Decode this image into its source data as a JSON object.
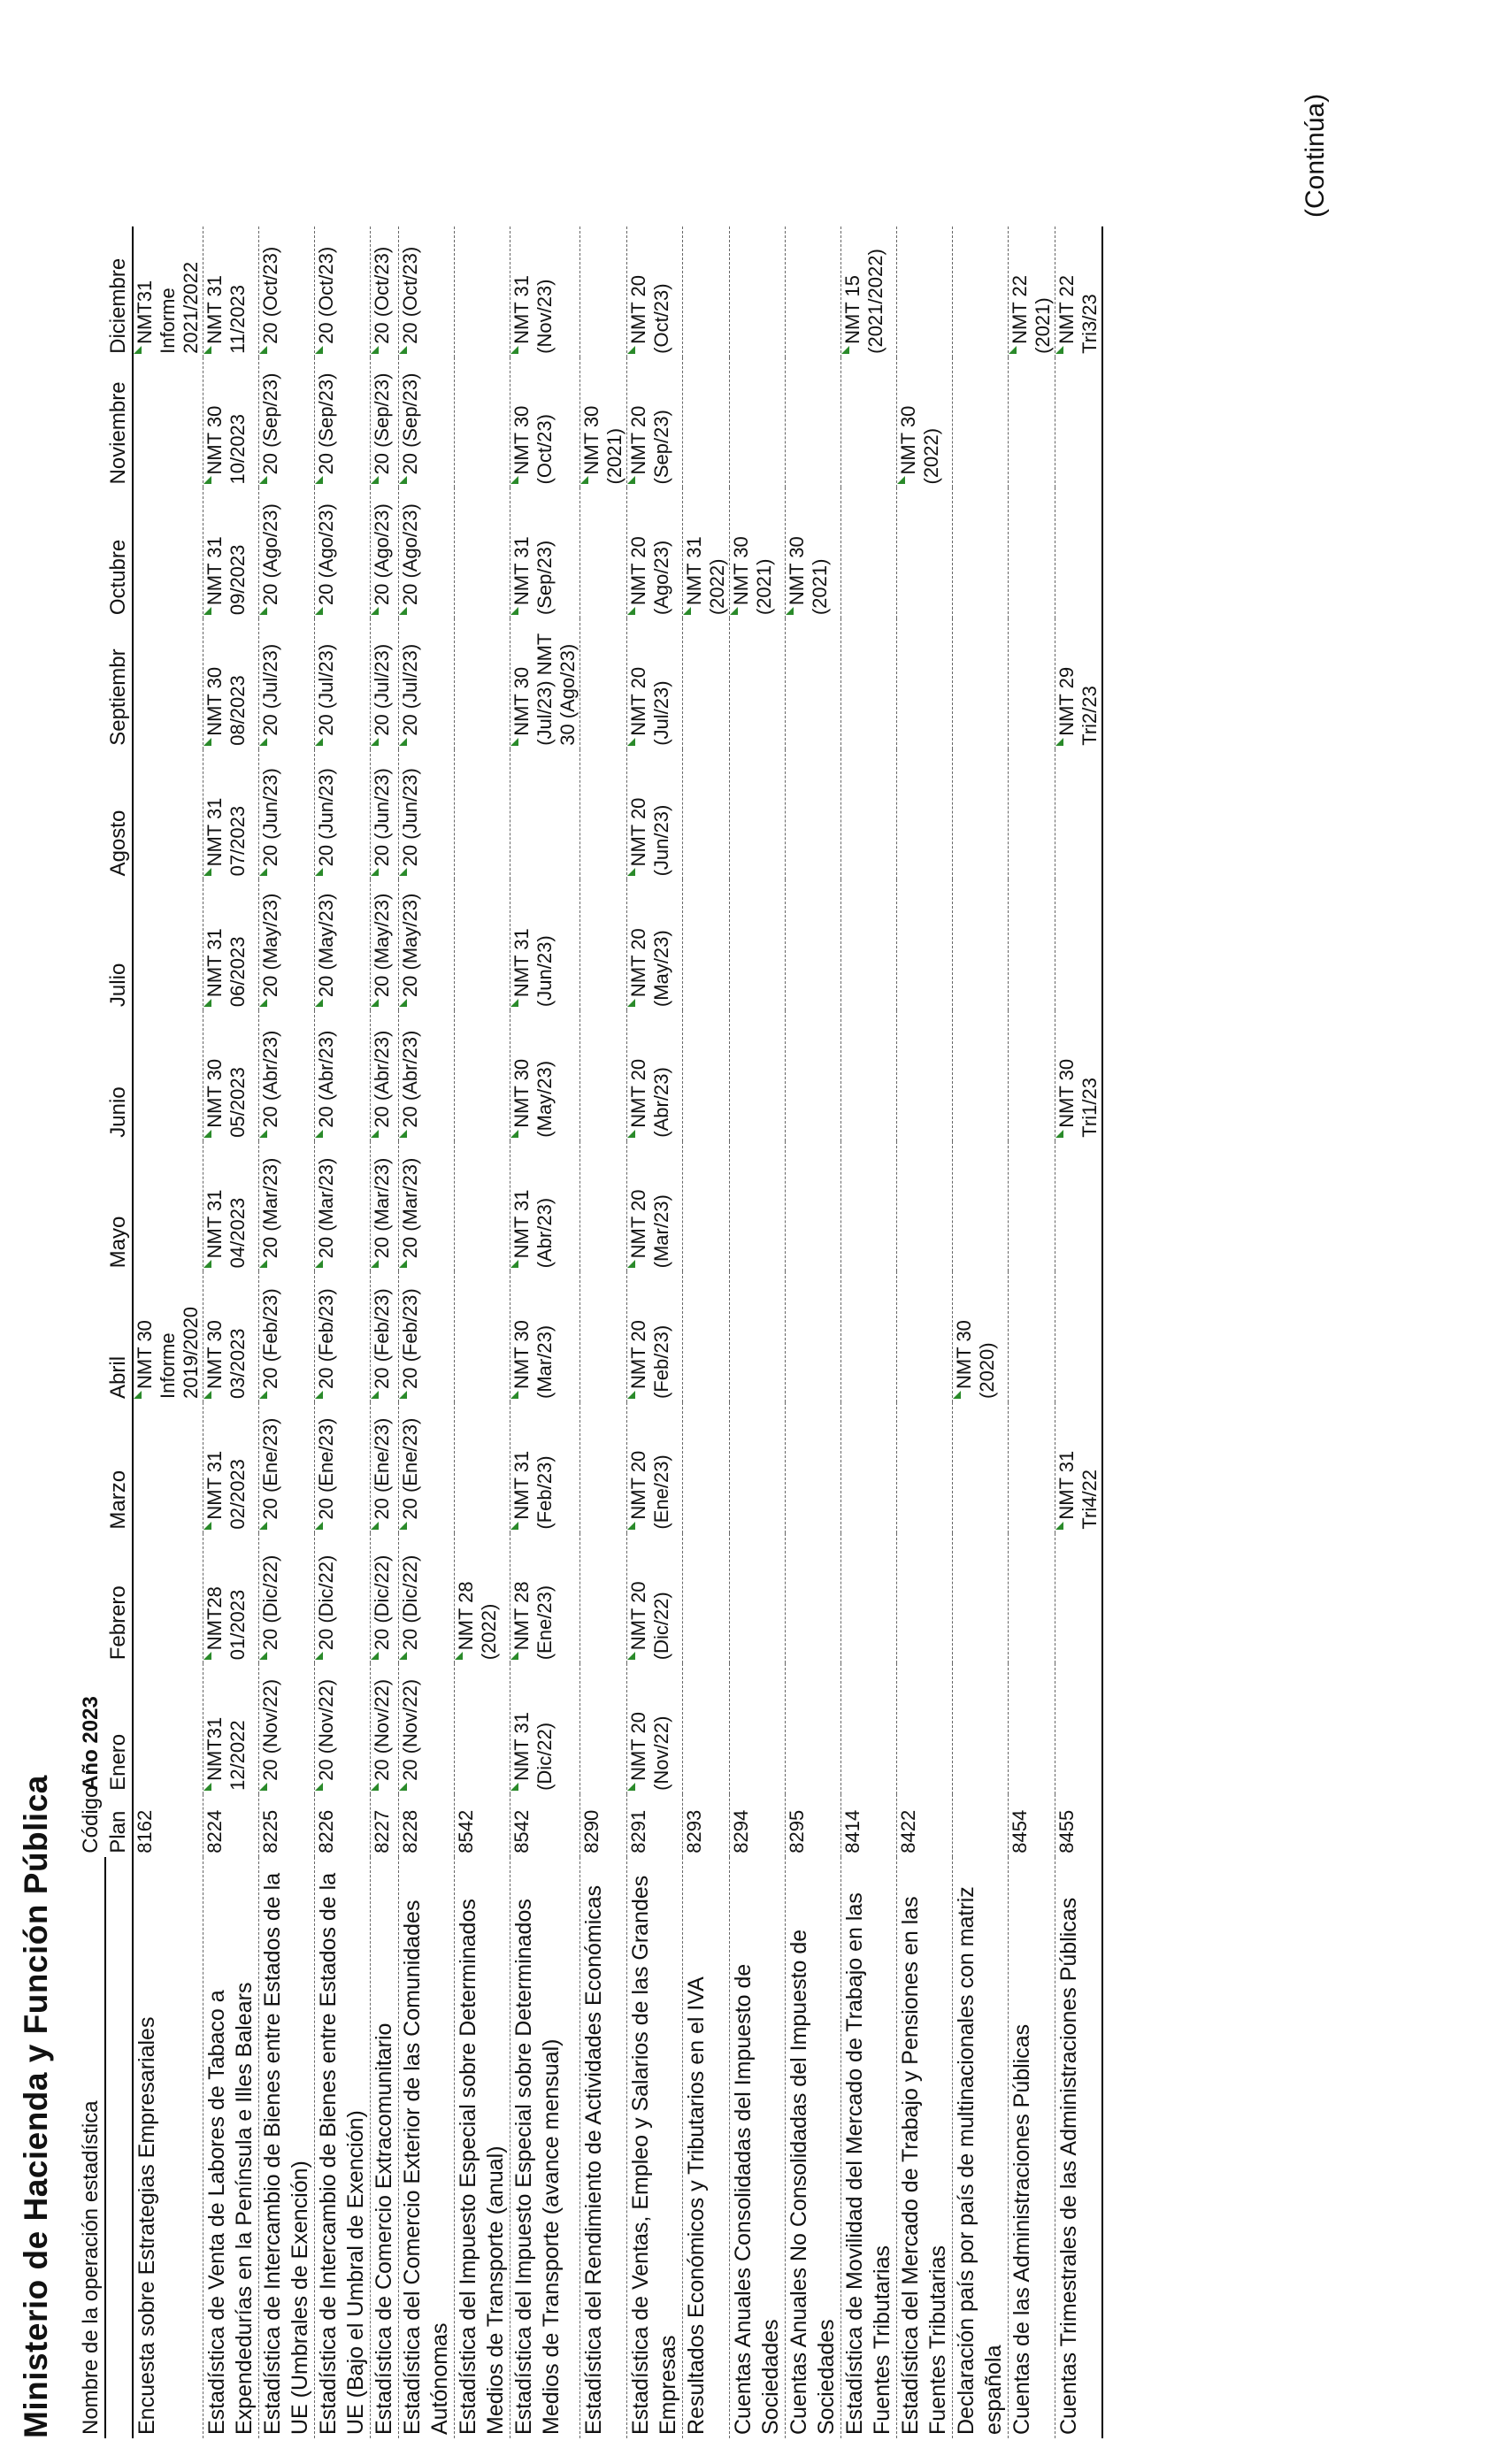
{
  "title": "Ministerio de Hacienda  y Función Pública",
  "continua": "(Continúa)",
  "header": {
    "name": "Nombre de la operación estadística",
    "codigo": "Código",
    "plan": "Plan",
    "year": "Año 2023",
    "months": [
      "Enero",
      "Febrero",
      "Marzo",
      "Abril",
      "Mayo",
      "Junio",
      "Julio",
      "Agosto",
      "Septiembr",
      "Octubre",
      "Noviembre",
      "Diciembre"
    ]
  },
  "rows": [
    {
      "name": "Encuesta sobre Estrategias Empresariales",
      "code": "8162",
      "cells": [
        "",
        "",
        "",
        "NMT 30 Informe 2019/2020",
        "",
        "",
        "",
        "",
        "",
        "",
        "",
        "NMT31 Informe 2021/2022"
      ]
    },
    {
      "name": "Estadística de Venta de Labores de Tabaco a Expendedurías en la Península e Illes Balears",
      "code": "8224",
      "cells": [
        "NMT31 12/2022",
        "NMT28 01/2023",
        "NMT 31 02/2023",
        "NMT 30 03/2023",
        "NMT 31 04/2023",
        "NMT 30 05/2023",
        "NMT 31 06/2023",
        "NMT 31 07/2023",
        "NMT 30 08/2023",
        "NMT 31 09/2023",
        "NMT 30 10/2023",
        "NMT 31 11/2023"
      ]
    },
    {
      "name": "Estadística de Intercambio de Bienes entre Estados de la UE (Umbrales de Exención)",
      "code": "8225",
      "cells": [
        "20 (Nov/22)",
        "20 (Dic/22)",
        "20 (Ene/23)",
        "20 (Feb/23)",
        "20 (Mar/23)",
        "20 (Abr/23)",
        "20 (May/23)",
        "20 (Jun/23)",
        "20 (Jul/23)",
        "20 (Ago/23)",
        "20 (Sep/23)",
        "20 (Oct/23)"
      ]
    },
    {
      "name": "Estadística de Intercambio de Bienes entre Estados de la UE (Bajo el Umbral de Exención)",
      "code": "8226",
      "cells": [
        "20 (Nov/22)",
        "20 (Dic/22)",
        "20 (Ene/23)",
        "20 (Feb/23)",
        "20 (Mar/23)",
        "20 (Abr/23)",
        "20 (May/23)",
        "20 (Jun/23)",
        "20 (Jul/23)",
        "20 (Ago/23)",
        "20 (Sep/23)",
        "20 (Oct/23)"
      ]
    },
    {
      "name": "Estadística de Comercio Extracomunitario",
      "code": "8227",
      "cells": [
        "20 (Nov/22)",
        "20 (Dic/22)",
        "20 (Ene/23)",
        "20 (Feb/23)",
        "20 (Mar/23)",
        "20 (Abr/23)",
        "20 (May/23)",
        "20 (Jun/23)",
        "20 (Jul/23)",
        "20 (Ago/23)",
        "20 (Sep/23)",
        "20 (Oct/23)"
      ]
    },
    {
      "name": "Estadística del Comercio Exterior de las Comunidades Autónomas",
      "code": "8228",
      "cells": [
        "20 (Nov/22)",
        "20 (Dic/22)",
        "20 (Ene/23)",
        "20 (Feb/23)",
        "20 (Mar/23)",
        "20 (Abr/23)",
        "20 (May/23)",
        "20 (Jun/23)",
        "20 (Jul/23)",
        "20 (Ago/23)",
        "20 (Sep/23)",
        "20 (Oct/23)"
      ]
    },
    {
      "name": "Estadística del Impuesto Especial sobre Determinados Medios de Transporte (anual)",
      "code": "8542",
      "cells": [
        "",
        "NMT 28 (2022)",
        "",
        "",
        "",
        "",
        "",
        "",
        "",
        "",
        "",
        ""
      ]
    },
    {
      "name": "Estadística del Impuesto Especial sobre Determinados Medios de Transporte (avance mensual)",
      "code": "8542",
      "cells": [
        "NMT 31 (Dic/22)",
        "NMT 28 (Ene/23)",
        "NMT 31 (Feb/23)",
        "NMT 30 (Mar/23)",
        "NMT 31 (Abr/23)",
        "NMT 30 (May/23)",
        "NMT 31 (Jun/23)",
        "",
        "NMT 30 (Jul/23) NMT 30 (Ago/23)",
        "NMT 31 (Sep/23)",
        "NMT 30 (Oct/23)",
        "NMT 31 (Nov/23)"
      ]
    },
    {
      "name": "Estadística del Rendimiento de Actividades Económicas",
      "code": "8290",
      "cells": [
        "",
        "",
        "",
        "",
        "",
        "",
        "",
        "",
        "",
        "",
        "NMT 30 (2021)",
        ""
      ]
    },
    {
      "name": "Estadística de Ventas, Empleo y Salarios de las Grandes Empresas",
      "code": "8291",
      "cells": [
        "NMT 20 (Nov/22)",
        "NMT 20 (Dic/22)",
        "NMT 20 (Ene/23)",
        "NMT 20 (Feb/23)",
        "NMT 20 (Mar/23)",
        "NMT 20 (Abr/23)",
        "NMT 20 (May/23)",
        "NMT 20 (Jun/23)",
        "NMT 20 (Jul/23)",
        "NMT 20 (Ago/23)",
        "NMT 20 (Sep/23)",
        "NMT 20 (Oct/23)"
      ]
    },
    {
      "name": "Resultados Económicos y Tributarios en el IVA",
      "code": "8293",
      "cells": [
        "",
        "",
        "",
        "",
        "",
        "",
        "",
        "",
        "",
        "NMT 31 (2022)",
        "",
        ""
      ]
    },
    {
      "name": "Cuentas Anuales Consolidadas del Impuesto de Sociedades",
      "code": "8294",
      "cells": [
        "",
        "",
        "",
        "",
        "",
        "",
        "",
        "",
        "",
        "NMT 30 (2021)",
        "",
        ""
      ]
    },
    {
      "name": "Cuentas Anuales No Consolidadas del Impuesto de Sociedades",
      "code": "8295",
      "cells": [
        "",
        "",
        "",
        "",
        "",
        "",
        "",
        "",
        "",
        "NMT 30 (2021)",
        "",
        ""
      ]
    },
    {
      "name": "Estadística de Movilidad del Mercado de Trabajo en las Fuentes Tributarias",
      "code": "8414",
      "cells": [
        "",
        "",
        "",
        "",
        "",
        "",
        "",
        "",
        "",
        "",
        "",
        "NMT 15 (2021/2022)"
      ]
    },
    {
      "name": "Estadística del Mercado de Trabajo y Pensiones en las Fuentes Tributarias",
      "code": "8422",
      "cells": [
        "",
        "",
        "",
        "",
        "",
        "",
        "",
        "",
        "",
        "",
        "NMT 30 (2022)",
        ""
      ]
    },
    {
      "name": "Declaración país por país de multinacionales con matriz española",
      "code": "",
      "cells": [
        "",
        "",
        "",
        "NMT 30 (2020)",
        "",
        "",
        "",
        "",
        "",
        "",
        "",
        ""
      ]
    },
    {
      "name": "Cuentas de las Administraciones Públicas",
      "code": "8454",
      "cells": [
        "",
        "",
        "",
        "",
        "",
        "",
        "",
        "",
        "",
        "",
        "",
        "NMT 22 (2021)"
      ]
    },
    {
      "name": "Cuentas Trimestrales de las Administraciones Públicas",
      "code": "8455",
      "cells": [
        "",
        "",
        "NMT 31 Tri4/22",
        "",
        "",
        "NMT 30 Tri1/23",
        "",
        "",
        "NMT 29 Tri2/23",
        "",
        "",
        "NMT 22 Tri3/23"
      ]
    }
  ]
}
